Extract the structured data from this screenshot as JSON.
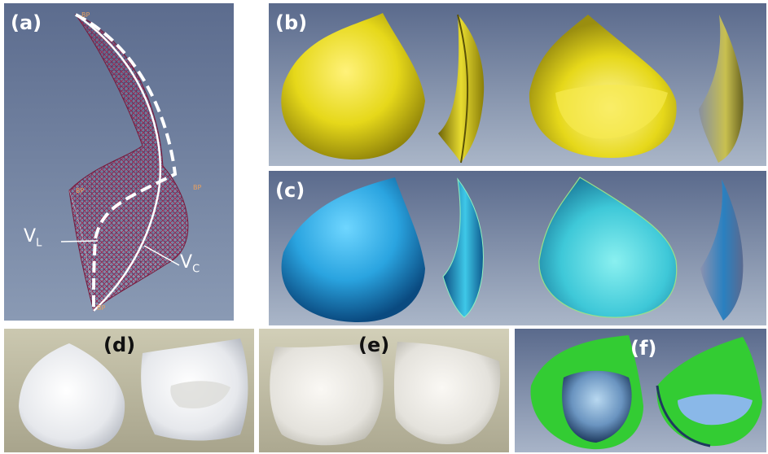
{
  "panels": {
    "a": {
      "label": "(a)",
      "vl_main": "V",
      "vl_sub": "L",
      "vc_main": "V",
      "vc_sub": "C",
      "bp_top": "BP",
      "bp_mid": "BP",
      "bp_right": "BP",
      "bp_bottom": "BP"
    },
    "b": {
      "label": "(b)"
    },
    "c": {
      "label": "(c)"
    },
    "d": {
      "label": "(d)"
    },
    "e": {
      "label": "(e)"
    },
    "f": {
      "label": "(f)"
    }
  },
  "colors": {
    "wire_mesh": "#a0204a",
    "yellow_surface": "#e6d81a",
    "blue_surface": "#2aa4e0",
    "green_surface": "#33cc33",
    "panel_bg": "#5a6e90"
  }
}
